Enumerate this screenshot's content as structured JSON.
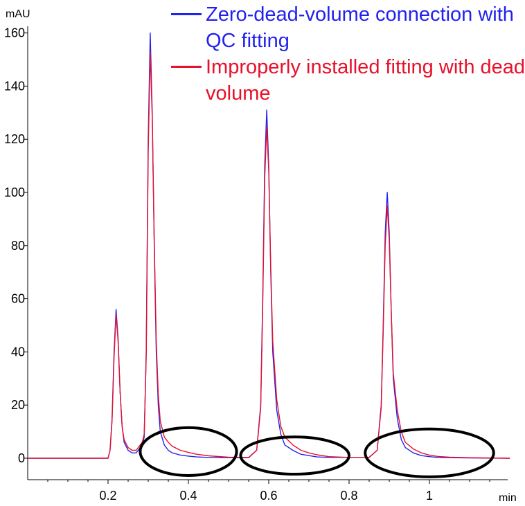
{
  "chart_data": {
    "type": "line",
    "ylabel": "mAU",
    "xlabel": "min",
    "xlim": [
      0,
      1.2
    ],
    "ylim": [
      -8,
      165
    ],
    "x_ticks": [
      0.2,
      0.4,
      0.6,
      0.8,
      1
    ],
    "x_tick_labels": [
      "0.2",
      "0.4",
      "0.6",
      "0.8",
      "1"
    ],
    "y_ticks": [
      0,
      20,
      40,
      60,
      80,
      100,
      120,
      140,
      160
    ],
    "y_tick_labels": [
      "0",
      "20",
      "40",
      "60",
      "80",
      "100",
      "120",
      "140",
      "160"
    ],
    "grid": false,
    "legend_position": "top-right",
    "series": [
      {
        "name": "Zero-dead-volume connection with QC fitting",
        "color": "#2222ee",
        "x": [
          0.0,
          0.2,
          0.205,
          0.21,
          0.215,
          0.22,
          0.225,
          0.23,
          0.235,
          0.24,
          0.25,
          0.26,
          0.27,
          0.28,
          0.285,
          0.29,
          0.295,
          0.3,
          0.305,
          0.31,
          0.315,
          0.32,
          0.325,
          0.33,
          0.34,
          0.35,
          0.36,
          0.38,
          0.4,
          0.42,
          0.45,
          0.5,
          0.55,
          0.57,
          0.58,
          0.585,
          0.59,
          0.595,
          0.6,
          0.605,
          0.61,
          0.62,
          0.63,
          0.64,
          0.66,
          0.68,
          0.7,
          0.72,
          0.75,
          0.8,
          0.85,
          0.87,
          0.88,
          0.885,
          0.89,
          0.895,
          0.9,
          0.905,
          0.91,
          0.92,
          0.93,
          0.94,
          0.96,
          0.98,
          1.0,
          1.02,
          1.05,
          1.1,
          1.2
        ],
        "y": [
          0,
          0,
          3,
          15,
          40,
          56,
          45,
          25,
          12,
          6,
          3,
          2,
          2,
          4,
          5,
          8,
          40,
          120,
          160,
          130,
          80,
          40,
          20,
          10,
          5,
          3,
          2,
          1.2,
          0.8,
          0.5,
          0.3,
          0.2,
          0.2,
          3,
          20,
          60,
          110,
          131,
          110,
          70,
          40,
          18,
          9,
          5,
          3,
          1.5,
          1,
          0.5,
          0.3,
          0.3,
          0.3,
          3,
          20,
          50,
          85,
          100,
          85,
          55,
          30,
          15,
          7,
          4,
          2,
          1,
          0.6,
          0.3,
          0.2,
          0.1,
          0
        ]
      },
      {
        "name": "Improperly installed fitting with dead volume",
        "color": "#e8102a",
        "x": [
          0.0,
          0.2,
          0.205,
          0.21,
          0.215,
          0.22,
          0.225,
          0.23,
          0.235,
          0.24,
          0.25,
          0.26,
          0.27,
          0.28,
          0.285,
          0.29,
          0.295,
          0.3,
          0.305,
          0.31,
          0.315,
          0.32,
          0.325,
          0.33,
          0.34,
          0.35,
          0.36,
          0.38,
          0.4,
          0.42,
          0.45,
          0.5,
          0.55,
          0.57,
          0.58,
          0.585,
          0.59,
          0.595,
          0.6,
          0.605,
          0.61,
          0.62,
          0.63,
          0.64,
          0.66,
          0.68,
          0.7,
          0.72,
          0.75,
          0.8,
          0.85,
          0.87,
          0.88,
          0.885,
          0.89,
          0.895,
          0.9,
          0.905,
          0.91,
          0.92,
          0.93,
          0.94,
          0.96,
          0.98,
          1.0,
          1.02,
          1.05,
          1.1,
          1.2
        ],
        "y": [
          0,
          0,
          3,
          14,
          38,
          54,
          44,
          25,
          12,
          7,
          4,
          3,
          3,
          5,
          6,
          9,
          38,
          115,
          153,
          128,
          82,
          44,
          24,
          14,
          8,
          6,
          4.5,
          3,
          2.2,
          1.5,
          0.9,
          0.4,
          0.3,
          3,
          19,
          57,
          105,
          125,
          108,
          72,
          44,
          22,
          12,
          8,
          5,
          3,
          2,
          1.3,
          0.6,
          0.3,
          0.3,
          3,
          19,
          48,
          80,
          95,
          82,
          55,
          32,
          18,
          10,
          6,
          3.5,
          2,
          1.2,
          0.7,
          0.4,
          0.2,
          0
        ]
      }
    ],
    "annotations": [
      {
        "shape": "ellipse",
        "x_center": 0.4,
        "y_center": 2.5,
        "x_radius": 0.12,
        "y_radius": 9
      },
      {
        "shape": "ellipse",
        "x_center": 0.665,
        "y_center": 1,
        "x_radius": 0.135,
        "y_radius": 7
      },
      {
        "shape": "ellipse",
        "x_center": 1.0,
        "y_center": 2,
        "x_radius": 0.16,
        "y_radius": 9
      }
    ]
  }
}
